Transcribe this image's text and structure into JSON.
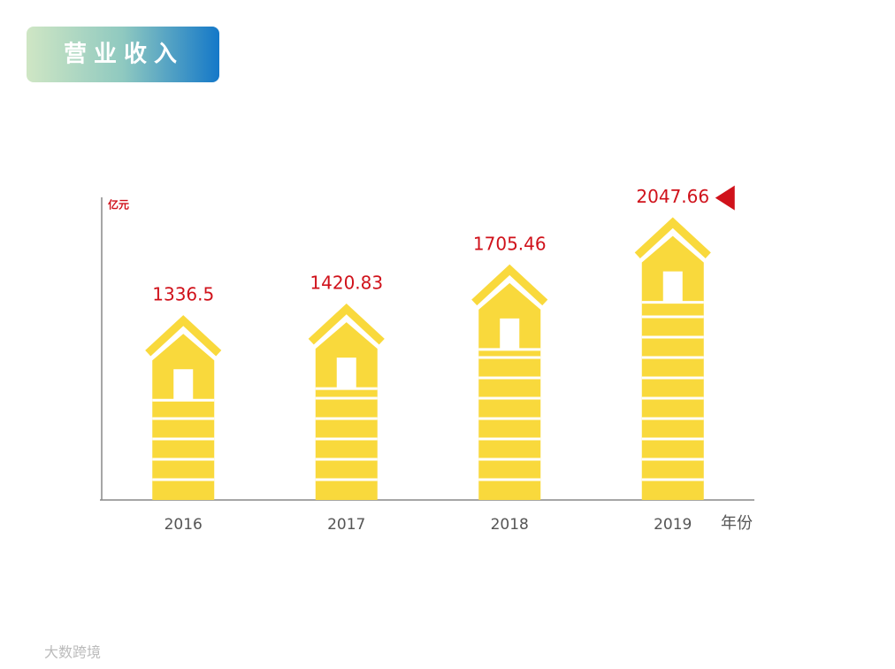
{
  "chart_data": {
    "type": "bar",
    "title": "营业收入",
    "y_label": "亿元",
    "x_label": "年份",
    "categories": [
      "2016",
      "2017",
      "2018",
      "2019"
    ],
    "values": [
      1336.5,
      1420.83,
      1705.46,
      2047.66
    ],
    "color": "#f9d93c",
    "label_color": "#d0121b",
    "ylim": [
      0,
      2200
    ]
  },
  "watermark": "大数跨境"
}
